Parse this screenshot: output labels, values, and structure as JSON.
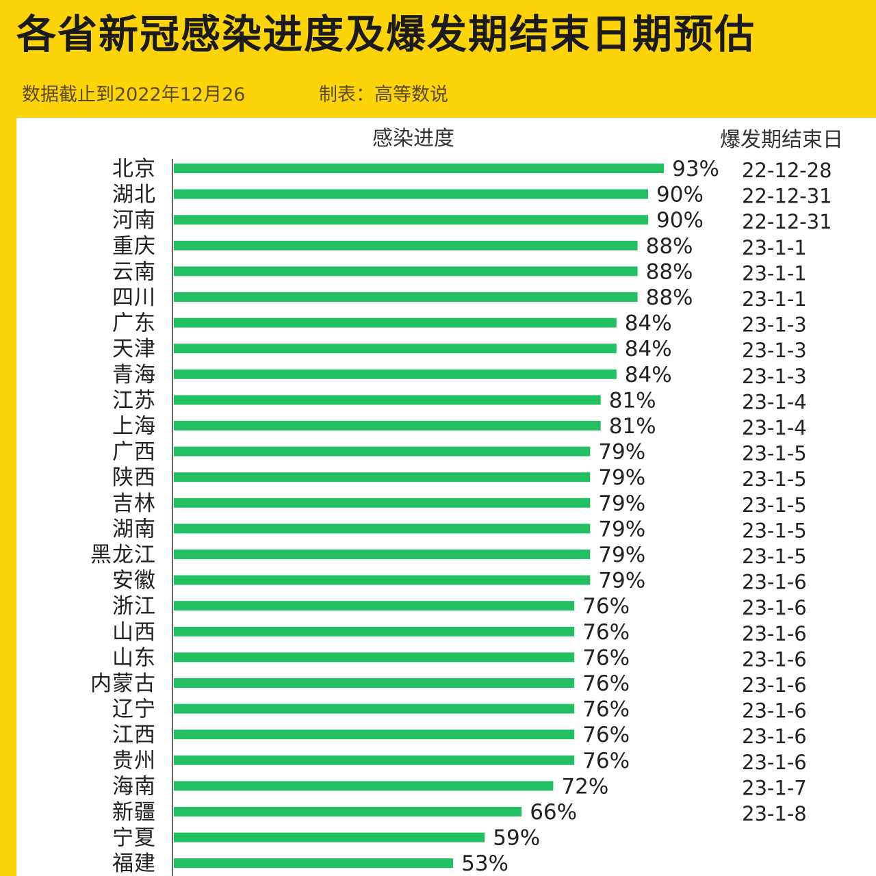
{
  "title": "各省新冠感染进度及爆发期结束日期预估",
  "subtitle_date": "数据截止到2022年12月26",
  "subtitle_credit": "制表：高等数说",
  "colors": {
    "bar": "#22C063",
    "background": "#FDD40A",
    "panel": "#FFFFFF"
  },
  "chart_data": {
    "type": "bar",
    "orientation": "horizontal",
    "value_header": "感染进度",
    "date_header": "爆发期结束日",
    "unit": "%",
    "xlim": [
      0,
      100
    ],
    "grid": false,
    "categories": [
      "北京",
      "湖北",
      "河南",
      "重庆",
      "云南",
      "四川",
      "广东",
      "天津",
      "青海",
      "江苏",
      "上海",
      "广西",
      "陕西",
      "吉林",
      "湖南",
      "黑龙江",
      "安徽",
      "浙江",
      "山西",
      "山东",
      "内蒙古",
      "辽宁",
      "江西",
      "贵州",
      "海南",
      "新疆",
      "宁夏",
      "福建"
    ],
    "values": [
      93,
      90,
      90,
      88,
      88,
      88,
      84,
      84,
      84,
      81,
      81,
      79,
      79,
      79,
      79,
      79,
      79,
      76,
      76,
      76,
      76,
      76,
      76,
      76,
      72,
      66,
      59,
      53
    ],
    "end_dates": [
      "22-12-28",
      "22-12-31",
      "22-12-31",
      "23-1-1",
      "23-1-1",
      "23-1-1",
      "23-1-3",
      "23-1-3",
      "23-1-3",
      "23-1-4",
      "23-1-4",
      "23-1-5",
      "23-1-5",
      "23-1-5",
      "23-1-5",
      "23-1-5",
      "23-1-6",
      "23-1-6",
      "23-1-6",
      "23-1-6",
      "23-1-6",
      "23-1-6",
      "23-1-6",
      "23-1-6",
      "23-1-7",
      "23-1-8",
      "",
      ""
    ]
  }
}
